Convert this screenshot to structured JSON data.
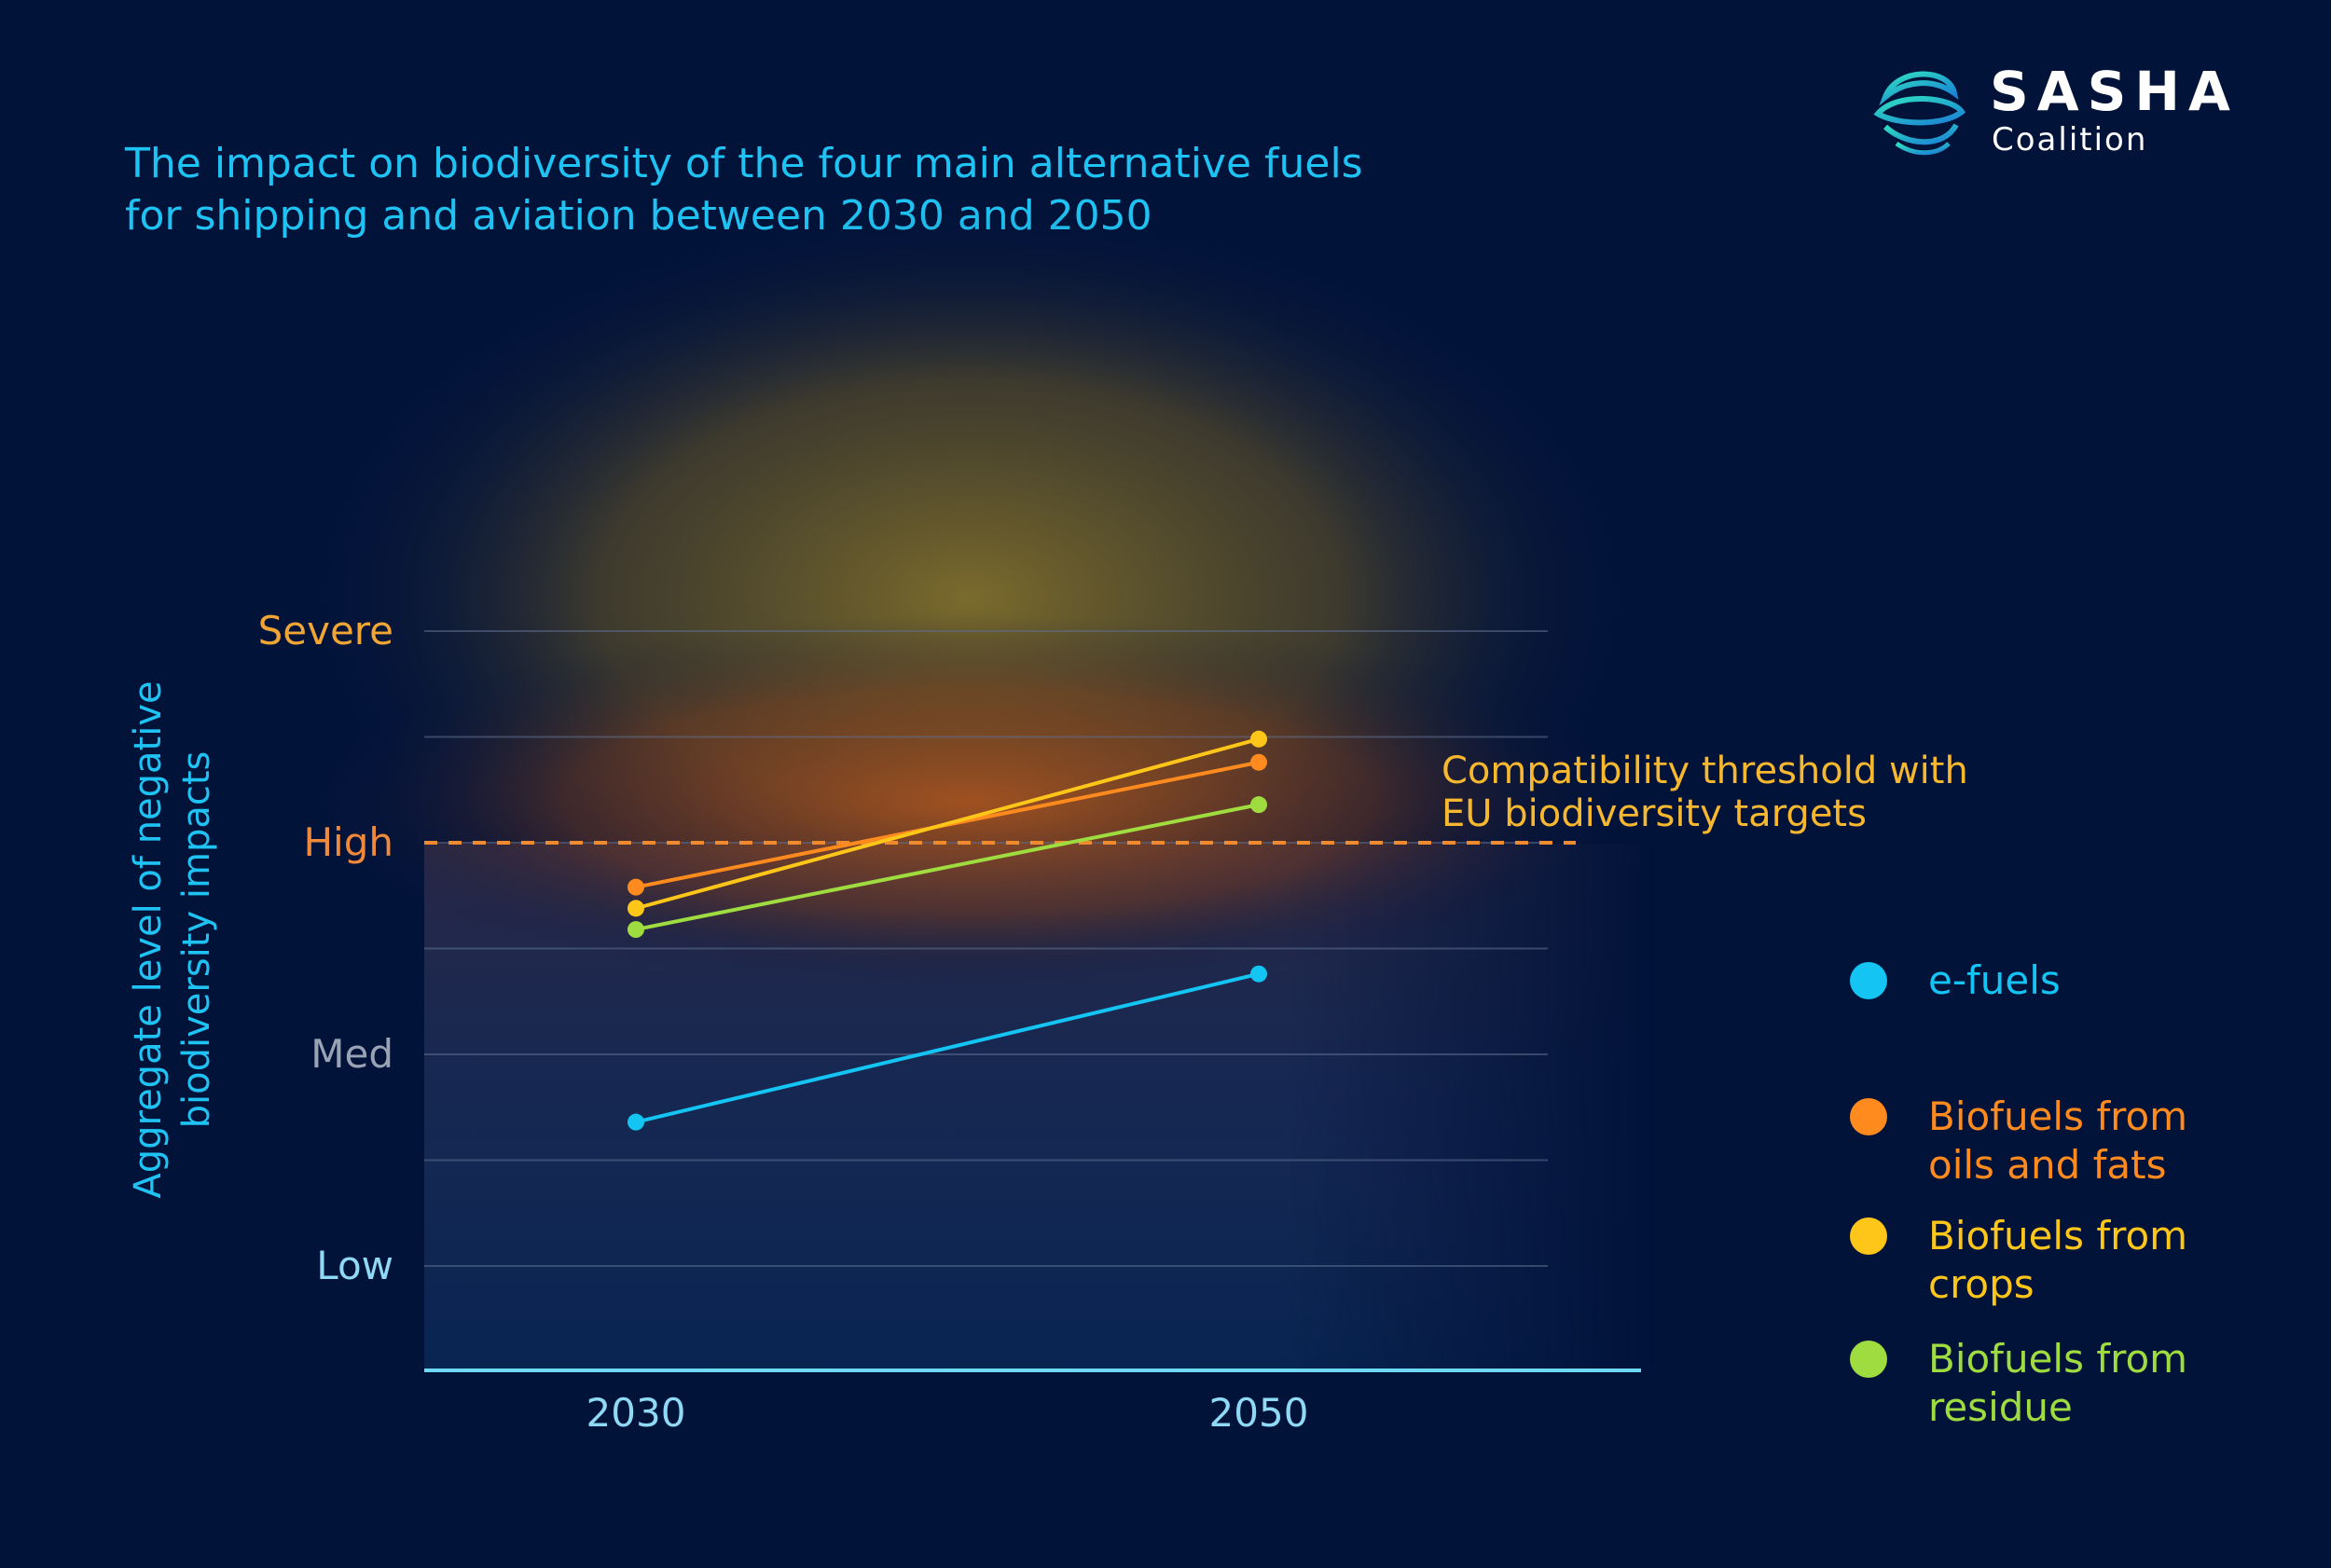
{
  "title_lines": [
    "The impact on biodiversity of the four main alternative fuels",
    "for shipping and aviation between 2030 and 2050"
  ],
  "logo": {
    "name": "SASHA",
    "subtitle": "Coalition",
    "icon": "sasha-globe-icon"
  },
  "colors": {
    "background": "#02133a",
    "title": "#1fc3f3",
    "axis": "#6fd8f2",
    "threshold": "#f08a2e",
    "annotation": "#f7b72e"
  },
  "chart_data": {
    "type": "line",
    "title": "The impact on biodiversity of the four main alternative fuels for shipping and aviation between 2030 and 2050",
    "xlabel": "",
    "ylabel_lines": [
      "Aggregate level of negative",
      "biodiversity impacts"
    ],
    "categories": [
      "2030",
      "2050"
    ],
    "y_scale": "ordinal 1-4 (Low=1, Med=2, High=3, Severe=4)",
    "ylim": [
      0.5,
      4.6
    ],
    "y_ticks": [
      {
        "label": "Low",
        "value": 1,
        "color": "#8fd9f5"
      },
      {
        "label": "Med",
        "value": 2,
        "color": "#9aa3b5"
      },
      {
        "label": "High",
        "value": 3,
        "color": "#f08a3a"
      },
      {
        "label": "Severe",
        "value": 4,
        "color": "#f0a535"
      }
    ],
    "minor_gridlines": [
      1.5,
      2.5,
      3.5
    ],
    "threshold": {
      "value": 3,
      "label_lines": [
        "Compatibility threshold with",
        "EU biodiversity targets"
      ]
    },
    "series": [
      {
        "name": "e-fuels",
        "label_lines": [
          "e-fuels"
        ],
        "color": "#14c4f2",
        "values": [
          1.68,
          2.38
        ]
      },
      {
        "name": "Biofuels from oils and fats",
        "label_lines": [
          "Biofuels from",
          "oils and fats"
        ],
        "color": "#ff8a1e",
        "values": [
          2.79,
          3.38
        ]
      },
      {
        "name": "Biofuels from crops",
        "label_lines": [
          "Biofuels from",
          "crops"
        ],
        "color": "#ffc61a",
        "values": [
          2.69,
          3.49
        ]
      },
      {
        "name": "Biofuels from residue",
        "label_lines": [
          "Biofuels from",
          "residue"
        ],
        "color": "#9fdc40",
        "values": [
          2.59,
          3.18
        ]
      }
    ],
    "legend_position": "right"
  }
}
